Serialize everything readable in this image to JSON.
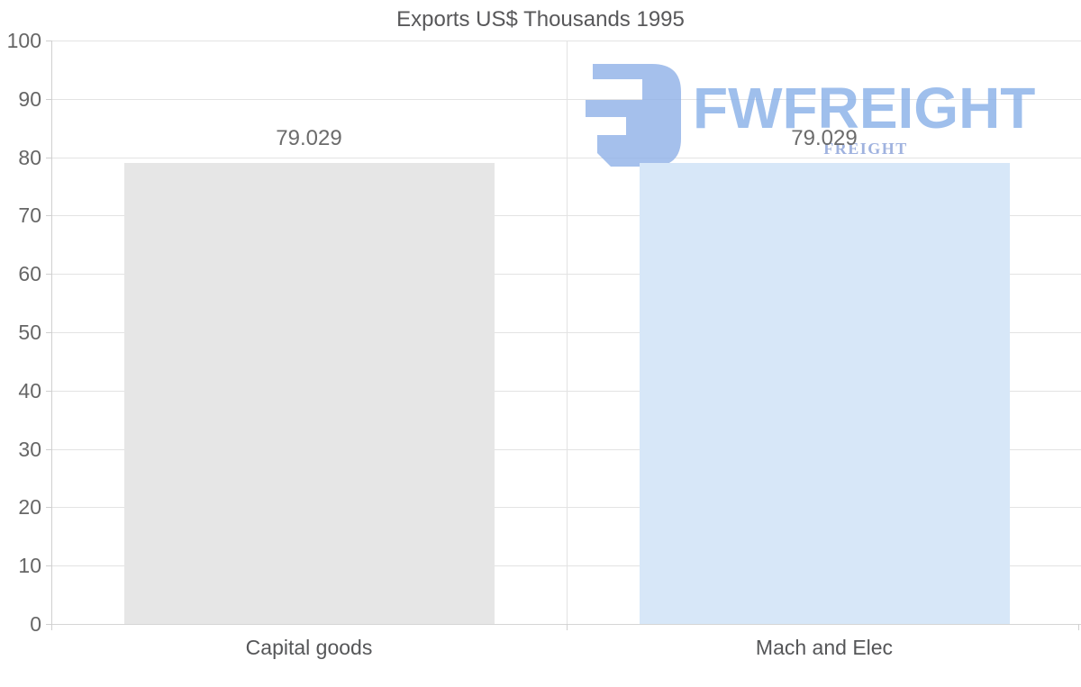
{
  "chart_data": {
    "type": "bar",
    "title": "Exports US$ Thousands 1995",
    "categories": [
      "Capital goods",
      "Mach and Elec"
    ],
    "values": [
      79.029,
      79.029
    ],
    "value_labels": [
      "79.029",
      "79.029"
    ],
    "bar_colors": [
      "#e6e6e6",
      "#d7e7f8"
    ],
    "xlabel": "",
    "ylabel": "",
    "ylim": [
      0,
      100
    ],
    "ytick_step": 10,
    "ytick_labels": [
      "0",
      "10",
      "20",
      "30",
      "40",
      "50",
      "60",
      "70",
      "80",
      "90",
      "100"
    ],
    "grid": true,
    "legend": "none"
  },
  "watermark": {
    "brand": "FWFREIGHT",
    "tagline": "FREIGHT SHIPPING",
    "logo_icon": "fwfreight-logo-icon",
    "brand_color": "#9fc0ee",
    "tagline_color": "#9badde",
    "glyph_color": "#a5bfec"
  },
  "colors": {
    "title": "#58585a",
    "axis_label": "#666666",
    "value_label": "#6b6b6b",
    "gridline": "#e3e3e3",
    "axis_line": "#d0d0d0",
    "background": "#ffffff"
  }
}
